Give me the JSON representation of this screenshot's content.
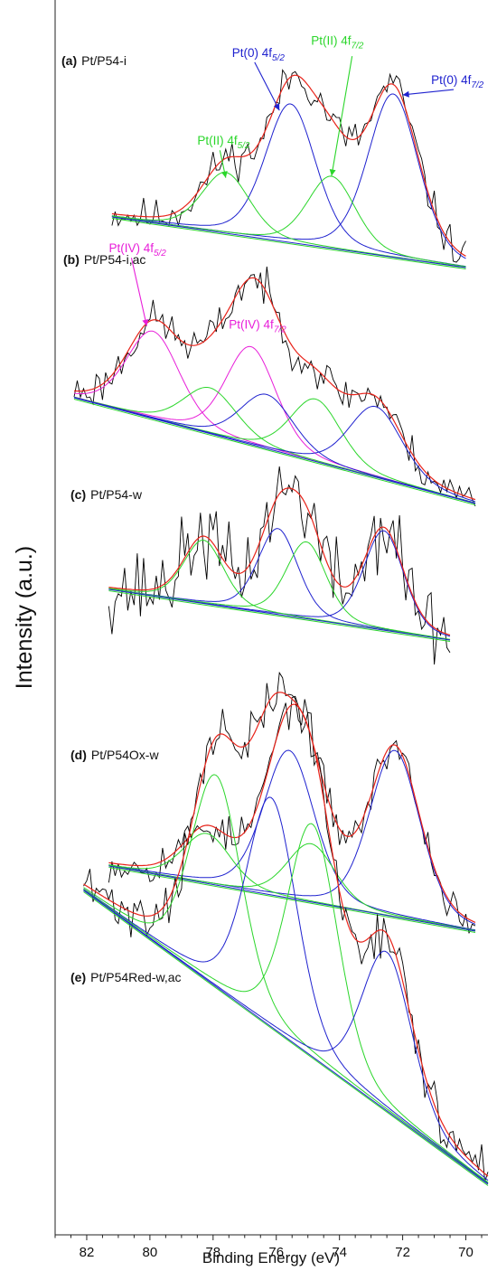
{
  "chart_data": {
    "type": "line",
    "title": "",
    "xlabel": "Binding Energy (eV)",
    "ylabel": "Intensity (a.u.)",
    "xlim": [
      83,
      69.3
    ],
    "x_reversed": true,
    "x_ticks": [
      82,
      80,
      78,
      76,
      74,
      72,
      70
    ],
    "y_ticks": [],
    "grid": false,
    "legend": "none",
    "colors": {
      "experimental": "#000000",
      "envelope": "#e8231a",
      "pt0": "#1f22cf",
      "pt2": "#2bd62b",
      "pt4": "#e81fd9",
      "background": "#1f22cf"
    },
    "panels": [
      {
        "label_tag": "(a)",
        "label_text": "Pt/P54-i",
        "x_range": [
          81.2,
          70.0
        ],
        "baseline": [
          0.1,
          0.0
        ],
        "components": [
          {
            "color_key": "pt0",
            "center": 75.55,
            "height": 0.73,
            "fwhm": 1.9
          },
          {
            "color_key": "pt0",
            "center": 72.3,
            "height": 0.86,
            "fwhm": 1.9
          },
          {
            "color_key": "pt2",
            "center": 77.6,
            "height": 0.32,
            "fwhm": 1.8
          },
          {
            "color_key": "pt2",
            "center": 74.25,
            "height": 0.38,
            "fwhm": 1.8
          }
        ],
        "noise": 0.075,
        "seed": 11,
        "annotations": [
          {
            "label": "Pt(0) 4f",
            "sub": "5/2",
            "color_key": "pt0",
            "text_x": 77.4,
            "text_y": 1.0,
            "arrow_to": [
              75.9,
              0.74
            ]
          },
          {
            "label": "Pt(II) 4f",
            "sub": "7/2",
            "color_key": "pt2",
            "text_x": 74.9,
            "text_y": 1.1,
            "arrow_to": [
              74.25,
              0.42
            ],
            "arrow_from": [
              73.6,
              1.06
            ],
            "italic_sub": true
          },
          {
            "label": "Pt(0) 4f",
            "sub": "7/2",
            "color_key": "pt0",
            "text_x": 71.1,
            "text_y": 0.95,
            "arrow_to": [
              72.0,
              0.88
            ]
          },
          {
            "label": "Pt(II) 4f",
            "sub": "5/2",
            "color_key": "pt2",
            "text_x": 78.5,
            "text_y": 0.52,
            "arrow_to": [
              77.6,
              0.36
            ],
            "italic_sub": true
          }
        ]
      },
      {
        "label_tag": "(b)",
        "label_text": "Pt/P54-i,ac",
        "x_range": [
          82.4,
          69.7
        ],
        "baseline": [
          0.15,
          0.0
        ],
        "components": [
          {
            "color_key": "pt4",
            "center": 79.9,
            "height": 0.42,
            "fwhm": 2.0
          },
          {
            "color_key": "pt4",
            "center": 76.8,
            "height": 0.47,
            "fwhm": 1.9
          },
          {
            "color_key": "pt2",
            "center": 78.1,
            "height": 0.22,
            "fwhm": 2.0
          },
          {
            "color_key": "pt2",
            "center": 74.75,
            "height": 0.3,
            "fwhm": 1.9
          },
          {
            "color_key": "pt0",
            "center": 76.3,
            "height": 0.26,
            "fwhm": 2.0
          },
          {
            "color_key": "pt0",
            "center": 72.85,
            "height": 0.34,
            "fwhm": 2.0
          }
        ],
        "noise": 0.07,
        "seed": 23,
        "annotations": [
          {
            "label": "Pt(IV) 4f",
            "sub": "5/2",
            "color_key": "pt4",
            "text_x": 81.3,
            "text_y": 0.88,
            "arrow_to": [
              80.1,
              0.56
            ]
          },
          {
            "label": "Pt(IV) 4f",
            "sub": "7/2",
            "color_key": "pt4",
            "text_x": 77.5,
            "text_y": 0.62
          }
        ]
      },
      {
        "label_tag": "(c)",
        "label_text": "Pt/P54-w",
        "x_range": [
          81.3,
          70.5
        ],
        "baseline": [
          0.15,
          0.02
        ],
        "components": [
          {
            "color_key": "pt0",
            "center": 75.95,
            "height": 0.38,
            "fwhm": 1.5
          },
          {
            "color_key": "pt0",
            "center": 72.6,
            "height": 0.44,
            "fwhm": 1.5
          },
          {
            "color_key": "pt2",
            "center": 78.3,
            "height": 0.28,
            "fwhm": 1.5
          },
          {
            "color_key": "pt2",
            "center": 75.05,
            "height": 0.34,
            "fwhm": 1.5
          }
        ],
        "noise": 0.14,
        "seed": 37,
        "annotations": []
      },
      {
        "label_tag": "(d)",
        "label_text": "Pt/P54Ox-w",
        "x_range": [
          81.3,
          69.7
        ],
        "baseline": [
          0.1,
          0.0
        ],
        "components": [
          {
            "color_key": "pt0",
            "center": 75.6,
            "height": 0.71,
            "fwhm": 1.9
          },
          {
            "color_key": "pt0",
            "center": 72.25,
            "height": 0.8,
            "fwhm": 1.9
          },
          {
            "color_key": "pt2",
            "center": 78.2,
            "height": 0.24,
            "fwhm": 1.8
          },
          {
            "color_key": "pt2",
            "center": 74.9,
            "height": 0.28,
            "fwhm": 1.8
          }
        ],
        "noise": 0.07,
        "seed": 53,
        "annotations": []
      },
      {
        "label_tag": "(e)",
        "label_text": "Pt/P54Red-w,ac",
        "x_range": [
          82.1,
          69.3
        ],
        "baseline": [
          0.1,
          0.0
        ],
        "components": [
          {
            "color_key": "pt2",
            "center": 77.9,
            "height": 0.6,
            "fwhm": 1.9
          },
          {
            "color_key": "pt0",
            "center": 76.15,
            "height": 0.65,
            "fwhm": 1.9
          },
          {
            "color_key": "pt2",
            "center": 74.85,
            "height": 0.66,
            "fwhm": 1.9
          },
          {
            "color_key": "pt0",
            "center": 72.5,
            "height": 0.45,
            "fwhm": 1.9
          }
        ],
        "noise": 0.055,
        "seed": 71,
        "annotations": []
      }
    ]
  }
}
